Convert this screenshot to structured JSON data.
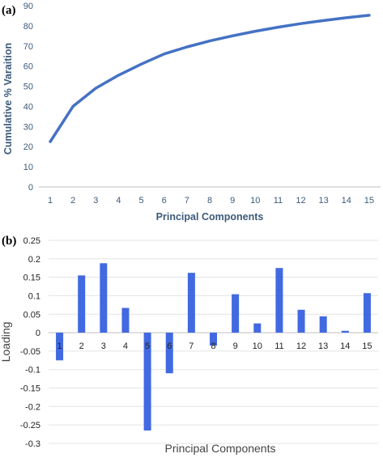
{
  "chart_data": [
    {
      "panel": "(a)",
      "type": "line",
      "xlabel": "Principal Components",
      "ylabel": "Cumulative % Varaition",
      "x": [
        1,
        2,
        3,
        4,
        5,
        6,
        7,
        8,
        9,
        10,
        11,
        12,
        13,
        14,
        15
      ],
      "series": [
        {
          "values": [
            22.5,
            40,
            49,
            55.5,
            61,
            66,
            69.5,
            72.5,
            75,
            77.3,
            79.3,
            81.1,
            82.6,
            84,
            85.2
          ]
        }
      ],
      "ylim": [
        0,
        90
      ],
      "yticks": [
        "0",
        "10",
        "20",
        "30",
        "40",
        "50",
        "60",
        "70",
        "80",
        "90"
      ],
      "xticks": [
        "1",
        "2",
        "3",
        "4",
        "5",
        "6",
        "7",
        "8",
        "9",
        "10",
        "11",
        "12",
        "13",
        "14",
        "15"
      ],
      "grid": false,
      "color": "#4472c4"
    },
    {
      "panel": "(b)",
      "type": "bar",
      "xlabel": "Principal Components",
      "ylabel": "Loading",
      "categories": [
        "1",
        "2",
        "3",
        "4",
        "5",
        "6",
        "7",
        "8",
        "9",
        "10",
        "11",
        "12",
        "13",
        "14",
        "15"
      ],
      "series": [
        {
          "values": [
            -0.075,
            0.155,
            0.188,
            0.067,
            -0.265,
            -0.11,
            0.162,
            -0.035,
            0.104,
            0.025,
            0.175,
            0.062,
            0.044,
            0.005,
            0.107
          ]
        }
      ],
      "ylim": [
        -0.3,
        0.25
      ],
      "yticks": [
        "0.25",
        "0.2",
        "0.15",
        "0.1",
        "0.05",
        "0",
        "-0.05",
        "-0.1",
        "-0.15",
        "-0.2",
        "-0.25",
        "-0.3"
      ],
      "grid": true,
      "color": "#4169e1"
    }
  ]
}
